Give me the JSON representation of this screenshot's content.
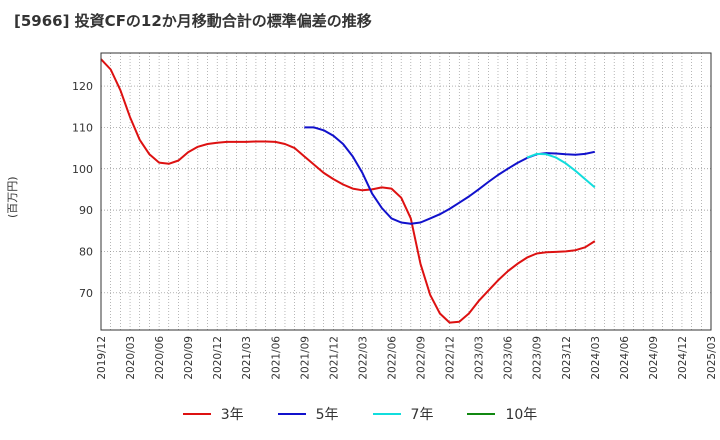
{
  "title": "[5966]  投資CFの12か月移動合計の標準偏差の推移",
  "ylabel": "(百万円)",
  "legend": [
    {
      "label": "3年",
      "color": "#dd1111"
    },
    {
      "label": "5年",
      "color": "#1111cc"
    },
    {
      "label": "7年",
      "color": "#11dddd"
    },
    {
      "label": "10年",
      "color": "#118811"
    }
  ],
  "chart_data": {
    "type": "line",
    "title": "[5966]  投資CFの12か月移動合計の標準偏差の推移",
    "ylabel": "(百万円)",
    "ylim": [
      61,
      128
    ],
    "y_ticks": [
      70,
      80,
      90,
      100,
      110,
      120
    ],
    "x_ticks": [
      "2019/12",
      "2020/03",
      "2020/06",
      "2020/09",
      "2020/12",
      "2021/03",
      "2021/06",
      "2021/09",
      "2021/12",
      "2022/03",
      "2022/06",
      "2022/09",
      "2022/12",
      "2023/03",
      "2023/06",
      "2023/09",
      "2023/12",
      "2024/03",
      "2024/06",
      "2024/09",
      "2024/12",
      "2025/03"
    ],
    "grid": true,
    "legend_position": "bottom",
    "series": [
      {
        "name": "3年",
        "color": "#dd1111",
        "x": [
          "2019/12",
          "2020/01",
          "2020/02",
          "2020/03",
          "2020/04",
          "2020/05",
          "2020/06",
          "2020/07",
          "2020/08",
          "2020/09",
          "2020/10",
          "2020/11",
          "2020/12",
          "2021/01",
          "2021/02",
          "2021/03",
          "2021/04",
          "2021/05",
          "2021/06",
          "2021/07",
          "2021/08",
          "2021/09",
          "2021/10",
          "2021/11",
          "2021/12",
          "2022/01",
          "2022/02",
          "2022/03",
          "2022/04",
          "2022/05",
          "2022/06",
          "2022/07",
          "2022/08",
          "2022/09",
          "2022/10",
          "2022/11",
          "2022/12",
          "2023/01",
          "2023/02",
          "2023/03",
          "2023/04",
          "2023/05",
          "2023/06",
          "2023/07",
          "2023/08",
          "2023/09",
          "2023/10",
          "2023/11",
          "2023/12",
          "2024/01",
          "2024/02",
          "2024/03"
        ],
        "values": [
          126.5,
          124,
          119,
          112.5,
          107,
          103.5,
          101.5,
          101.2,
          102,
          104,
          105.3,
          106,
          106.3,
          106.5,
          106.5,
          106.5,
          106.6,
          106.6,
          106.5,
          106,
          105,
          103,
          101,
          99,
          97.5,
          96.2,
          95.2,
          94.8,
          95,
          95.5,
          95.2,
          93,
          88,
          77,
          69.5,
          65,
          62.8,
          63,
          65,
          68,
          70.5,
          73,
          75.2,
          77,
          78.5,
          79.5,
          79.8,
          79.9,
          80,
          80.3,
          81,
          82.5
        ]
      },
      {
        "name": "5年",
        "color": "#1111cc",
        "x": [
          "2021/09",
          "2021/10",
          "2021/11",
          "2021/12",
          "2022/01",
          "2022/02",
          "2022/03",
          "2022/04",
          "2022/05",
          "2022/06",
          "2022/07",
          "2022/08",
          "2022/09",
          "2022/10",
          "2022/11",
          "2022/12",
          "2023/01",
          "2023/02",
          "2023/03",
          "2023/04",
          "2023/05",
          "2023/06",
          "2023/07",
          "2023/08",
          "2023/09",
          "2023/10",
          "2023/11",
          "2023/12",
          "2024/01",
          "2024/02",
          "2024/03"
        ],
        "values": [
          110,
          110,
          109.3,
          108,
          106,
          103,
          99,
          94,
          90.5,
          88,
          87,
          86.7,
          87,
          88,
          89,
          90.3,
          91.8,
          93.3,
          95,
          96.8,
          98.5,
          100,
          101.4,
          102.6,
          103.5,
          103.8,
          103.7,
          103.5,
          103.4,
          103.6,
          104.1
        ]
      },
      {
        "name": "7年",
        "color": "#11dddd",
        "x": [
          "2023/08",
          "2023/09",
          "2023/10",
          "2023/11",
          "2023/12",
          "2024/01",
          "2024/02",
          "2024/03"
        ],
        "values": [
          102.7,
          103.6,
          103.5,
          102.7,
          101.3,
          99.5,
          97.5,
          95.5
        ]
      },
      {
        "name": "10年",
        "color": "#118811",
        "x": [],
        "values": []
      }
    ]
  }
}
